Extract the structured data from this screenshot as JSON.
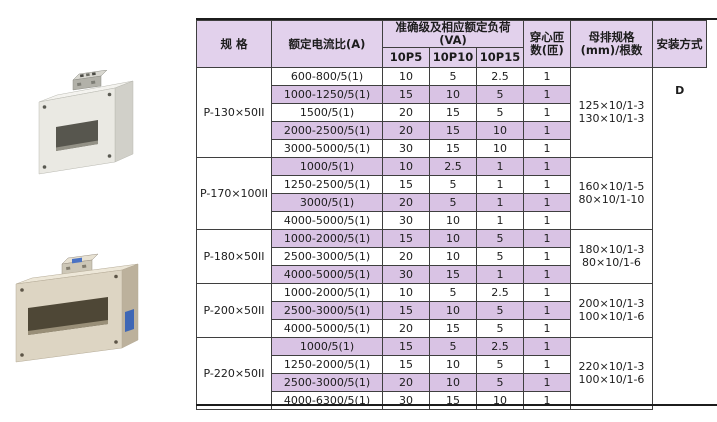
{
  "colors": {
    "header_bg": "#e2d1ec",
    "row_highlight_bg": "#d9c3e4",
    "grid_border": "#3f3f3f",
    "outer_rule": "#1c1c1c",
    "product_label_blue": "#3f67b5"
  },
  "images": [
    {
      "name": "current-transformer-photo-top",
      "style": "white housing, rectangular window, top terminal block"
    },
    {
      "name": "current-transformer-photo-bottom",
      "style": "beige housing, wide rectangular window, blue side label"
    }
  ],
  "table": {
    "headers": {
      "spec": "规  格",
      "ratio": "额定电流比(A)",
      "accuracy_group": "准确级及相应额定负荷(VA)",
      "sub_10p5": "10P5",
      "sub_10p10": "10P10",
      "sub_10p15": "10P15",
      "turns": "穿心匝数(匝)",
      "busbar": "母排规格(mm)/根数",
      "install": "安装方式"
    },
    "install_value": "D",
    "groups": [
      {
        "spec": "P-130×50II",
        "busbar": [
          "125×10/1-3",
          "130×10/1-3"
        ],
        "rows": [
          {
            "ratio": "600-800/5(1)",
            "p5": "10",
            "p10": "5",
            "p15": "2.5",
            "turns": "1"
          },
          {
            "ratio": "1000-1250/5(1)",
            "p5": "15",
            "p10": "10",
            "p15": "5",
            "turns": "1"
          },
          {
            "ratio": "1500/5(1)",
            "p5": "20",
            "p10": "15",
            "p15": "5",
            "turns": "1"
          },
          {
            "ratio": "2000-2500/5(1)",
            "p5": "20",
            "p10": "15",
            "p15": "10",
            "turns": "1"
          },
          {
            "ratio": "3000-5000/5(1)",
            "p5": "30",
            "p10": "15",
            "p15": "10",
            "turns": "1"
          }
        ]
      },
      {
        "spec": "P-170×100II",
        "busbar": [
          "160×10/1-5",
          "80×10/1-10"
        ],
        "rows": [
          {
            "ratio": "1000/5(1)",
            "p5": "10",
            "p10": "2.5",
            "p15": "1",
            "turns": "1"
          },
          {
            "ratio": "1250-2500/5(1)",
            "p5": "15",
            "p10": "5",
            "p15": "1",
            "turns": "1"
          },
          {
            "ratio": "3000/5(1)",
            "p5": "20",
            "p10": "5",
            "p15": "1",
            "turns": "1"
          },
          {
            "ratio": "4000-5000/5(1)",
            "p5": "30",
            "p10": "10",
            "p15": "1",
            "turns": "1"
          }
        ]
      },
      {
        "spec": "P-180×50II",
        "busbar": [
          "180×10/1-3",
          "80×10/1-6"
        ],
        "rows": [
          {
            "ratio": "1000-2000/5(1)",
            "p5": "15",
            "p10": "10",
            "p15": "5",
            "turns": "1"
          },
          {
            "ratio": "2500-3000/5(1)",
            "p5": "20",
            "p10": "10",
            "p15": "5",
            "turns": "1"
          },
          {
            "ratio": "4000-5000/5(1)",
            "p5": "30",
            "p10": "15",
            "p15": "1",
            "turns": "1"
          }
        ]
      },
      {
        "spec": "P-200×50II",
        "busbar": [
          "200×10/1-3",
          "100×10/1-6"
        ],
        "rows": [
          {
            "ratio": "1000-2000/5(1)",
            "p5": "10",
            "p10": "5",
            "p15": "2.5",
            "turns": "1"
          },
          {
            "ratio": "2500-3000/5(1)",
            "p5": "15",
            "p10": "10",
            "p15": "5",
            "turns": "1"
          },
          {
            "ratio": "4000-5000/5(1)",
            "p5": "20",
            "p10": "15",
            "p15": "5",
            "turns": "1"
          }
        ]
      },
      {
        "spec": "P-220×50II",
        "busbar": [
          "220×10/1-3",
          "100×10/1-6"
        ],
        "rows": [
          {
            "ratio": "1000/5(1)",
            "p5": "15",
            "p10": "5",
            "p15": "2.5",
            "turns": "1"
          },
          {
            "ratio": "1250-2000/5(1)",
            "p5": "15",
            "p10": "10",
            "p15": "5",
            "turns": "1"
          },
          {
            "ratio": "2500-3000/5(1)",
            "p5": "20",
            "p10": "10",
            "p15": "5",
            "turns": "1"
          },
          {
            "ratio": "4000-6300/5(1)",
            "p5": "30",
            "p10": "15",
            "p15": "10",
            "turns": "1"
          }
        ]
      }
    ]
  }
}
